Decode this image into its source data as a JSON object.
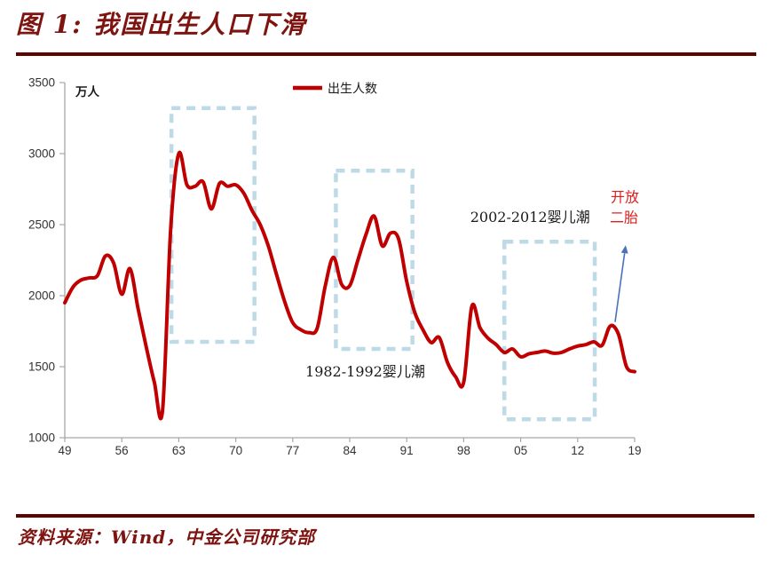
{
  "header": {
    "title": "图 1: 我国出生人口下滑"
  },
  "footer": {
    "source": "资料来源：Wind，中金公司研究部"
  },
  "colors": {
    "title_red": "#7E1410",
    "rule_dark_red": "#600300",
    "series_red": "#C00000",
    "box_blue": "#BEDAE7",
    "arrow_blue": "#4A72B8",
    "annotation_red": "#DC2020",
    "axis_line": "#A6A6A6",
    "tick_text": "#333333",
    "label_text": "#1A1A1A"
  },
  "chart_data": {
    "type": "line",
    "title": "图 1: 我国出生人口下滑",
    "ylabel": "万人",
    "grid": false,
    "legend_position": "top-center",
    "legend": [
      {
        "label": "出生人数",
        "color": "#C00000"
      }
    ],
    "x_start_year": 1949,
    "x_end_year": 2019,
    "xlim": [
      1949,
      2019
    ],
    "ylim": [
      1000,
      3500
    ],
    "y_ticks": [
      3500,
      3000,
      2500,
      2000,
      1500,
      1000
    ],
    "x_ticks": [
      {
        "label": "49",
        "year": 1949
      },
      {
        "label": "56",
        "year": 1956
      },
      {
        "label": "63",
        "year": 1963
      },
      {
        "label": "70",
        "year": 1970
      },
      {
        "label": "77",
        "year": 1977
      },
      {
        "label": "84",
        "year": 1984
      },
      {
        "label": "91",
        "year": 1991
      },
      {
        "label": "98",
        "year": 1998
      },
      {
        "label": "05",
        "year": 2005
      },
      {
        "label": "12",
        "year": 2012
      },
      {
        "label": "19",
        "year": 2019
      }
    ],
    "series": [
      {
        "name": "出生人数",
        "color": "#C00000",
        "values": [
          1950,
          2060,
          2110,
          2125,
          2140,
          2280,
          2230,
          2010,
          2190,
          1910,
          1640,
          1390,
          1190,
          2460,
          3000,
          2780,
          2770,
          2800,
          2610,
          2790,
          2770,
          2780,
          2720,
          2600,
          2500,
          2350,
          2150,
          1960,
          1810,
          1760,
          1740,
          1770,
          2070,
          2270,
          2080,
          2070,
          2250,
          2430,
          2560,
          2350,
          2440,
          2400,
          2100,
          1880,
          1760,
          1670,
          1705,
          1530,
          1430,
          1390,
          1925,
          1775,
          1700,
          1655,
          1600,
          1625,
          1570,
          1590,
          1600,
          1610,
          1595,
          1600,
          1625,
          1645,
          1655,
          1675,
          1650,
          1786,
          1730,
          1500,
          1465
        ]
      }
    ],
    "annotations": {
      "dashed_boxes": [
        {
          "name": "1963-1970-baby-boom-box",
          "year_from": 1962.1,
          "year_to": 1972.3,
          "value_bottom": 1675,
          "value_top": 3320
        },
        {
          "name": "1982-1992-baby-boom-box",
          "year_from": 1982.3,
          "year_to": 1991.7,
          "value_bottom": 1625,
          "value_top": 2880
        },
        {
          "name": "2002-2012-baby-boom-box",
          "year_from": 2003.0,
          "year_to": 2014.1,
          "value_bottom": 1130,
          "value_top": 2380
        }
      ],
      "labels": [
        {
          "text": "1982-1992婴儿潮",
          "year": 1978.55,
          "value": 1431,
          "color": "#1A1A1A",
          "size": 16
        },
        {
          "text": "2002-2012婴儿潮",
          "year": 1998.8,
          "value": 2520,
          "color": "#1A1A1A",
          "size": 16
        },
        {
          "text": "开放",
          "year": 2016.05,
          "value": 2660,
          "color": "#DC2020",
          "size": 16
        },
        {
          "text": "二胎",
          "year": 2015.95,
          "value": 2515,
          "color": "#DC2020",
          "size": 16
        }
      ],
      "arrow": {
        "from_year": 2016.6,
        "from_value": 1815,
        "to_year": 2017.9,
        "to_value": 2355,
        "color": "#4A72B8"
      }
    }
  }
}
